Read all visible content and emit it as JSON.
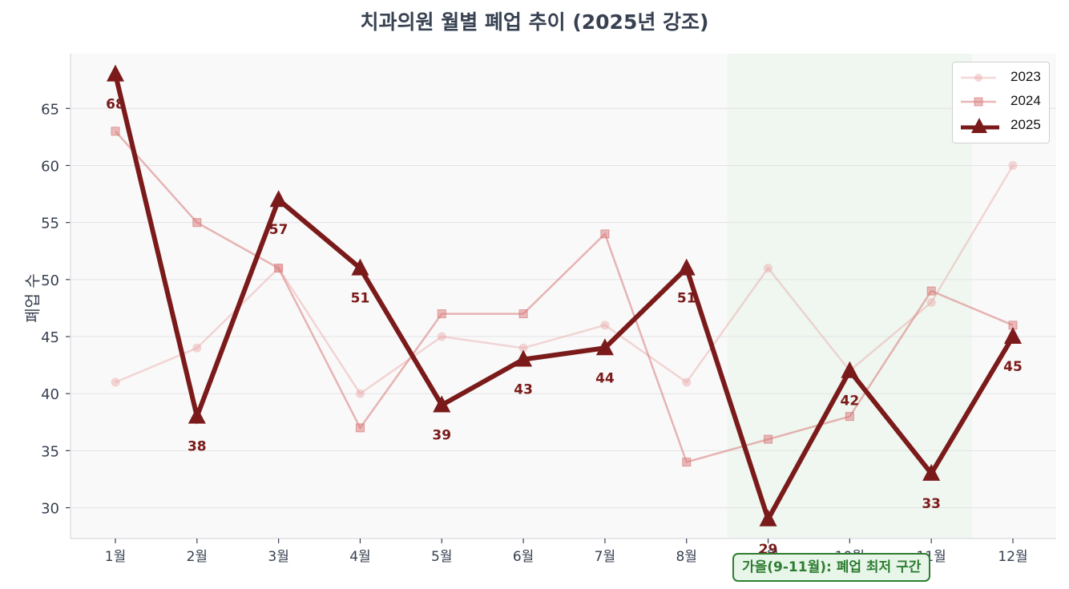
{
  "chart_data": {
    "type": "line",
    "title": "치과의원 월별 폐업 추이 (2025년 강조)",
    "xlabel": "",
    "ylabel": "폐업 수",
    "categories": [
      "1월",
      "2월",
      "3월",
      "4월",
      "5월",
      "6월",
      "7월",
      "8월",
      "9월",
      "10월",
      "11월",
      "12월"
    ],
    "series": [
      {
        "name": "2023",
        "marker": "circle",
        "color": "#e8a6a6",
        "values": [
          41,
          44,
          51,
          40,
          45,
          44,
          46,
          41,
          51,
          42,
          48,
          60
        ]
      },
      {
        "name": "2024",
        "marker": "square",
        "color": "#d97a7a",
        "values": [
          63,
          55,
          51,
          37,
          47,
          47,
          54,
          34,
          36,
          38,
          49,
          46
        ]
      },
      {
        "name": "2025",
        "marker": "triangle",
        "color": "#7b1a1a",
        "values": [
          68,
          38,
          57,
          51,
          39,
          43,
          44,
          51,
          29,
          42,
          33,
          45
        ],
        "data_labels": true
      }
    ],
    "yticks": [
      30,
      35,
      40,
      45,
      50,
      55,
      60,
      65
    ],
    "ylim": [
      27.3,
      69.8
    ],
    "grid": true,
    "legend_position": "upper right",
    "highlight_region": {
      "from": "9월",
      "to": "11월",
      "color": "#e8f5e9"
    },
    "annotation": "가을(9-11월): 폐업 최저 구간"
  },
  "title": "치과의원 월별 폐업 추이 (2025년 강조)",
  "ylabel": "폐업 수",
  "legend": [
    {
      "label": "2023"
    },
    {
      "label": "2024"
    },
    {
      "label": "2025"
    }
  ],
  "annotation": "가을(9-11월): 폐업 최저 구간"
}
